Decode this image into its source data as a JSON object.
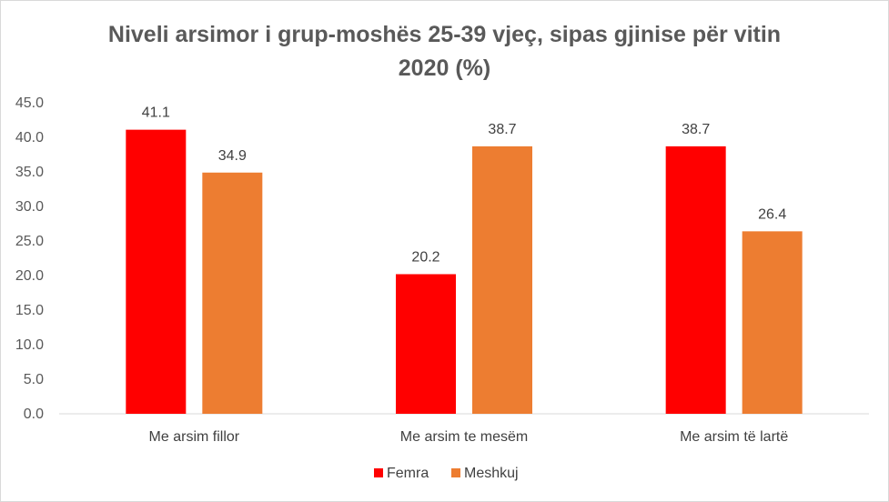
{
  "chart_data": {
    "type": "bar",
    "title_line1": "Niveli arsimor i grup-moshës 25-39 vjeç, sipas gjinise për vitin",
    "title_line2": "2020 (%)",
    "xlabel": "",
    "ylabel": "",
    "categories": [
      "Me arsim fillor",
      "Me arsim te mesëm",
      "Me arsim të lartë"
    ],
    "series": [
      {
        "name": "Femra",
        "color": "#ff0000",
        "values": [
          41.1,
          20.2,
          38.7
        ]
      },
      {
        "name": "Meshkuj",
        "color": "#ed7d31",
        "values": [
          34.9,
          38.7,
          26.4
        ]
      }
    ],
    "ylim": [
      0,
      45
    ],
    "yticks": [
      "0.0",
      "5.0",
      "10.0",
      "15.0",
      "20.0",
      "25.0",
      "30.0",
      "35.0",
      "40.0",
      "45.0"
    ],
    "grid": false,
    "legend_position": "bottom"
  }
}
